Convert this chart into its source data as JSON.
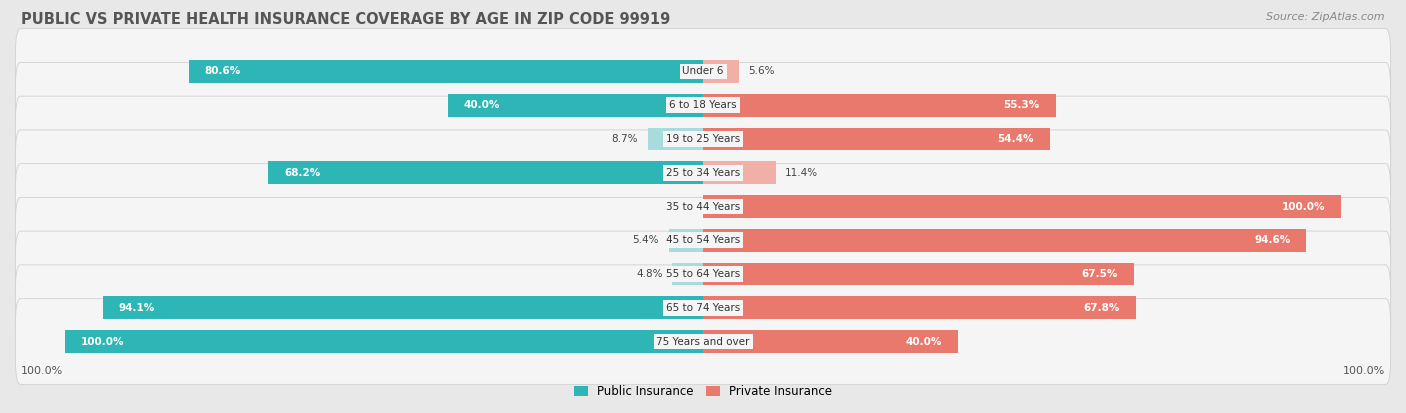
{
  "title": "PUBLIC VS PRIVATE HEALTH INSURANCE COVERAGE BY AGE IN ZIP CODE 99919",
  "source": "Source: ZipAtlas.com",
  "categories": [
    "Under 6",
    "6 to 18 Years",
    "19 to 25 Years",
    "25 to 34 Years",
    "35 to 44 Years",
    "45 to 54 Years",
    "55 to 64 Years",
    "65 to 74 Years",
    "75 Years and over"
  ],
  "public_values": [
    80.6,
    40.0,
    8.7,
    68.2,
    0.0,
    5.4,
    4.8,
    94.1,
    100.0
  ],
  "private_values": [
    5.6,
    55.3,
    54.4,
    11.4,
    100.0,
    94.6,
    67.5,
    67.8,
    40.0
  ],
  "public_color": "#2eb5b5",
  "public_color_light": "#a8dcdc",
  "private_color": "#e8796c",
  "private_color_light": "#f0b0a8",
  "public_label": "Public Insurance",
  "private_label": "Private Insurance",
  "background_color": "#e8e8e8",
  "row_bg_color": "#f5f5f5",
  "row_border_color": "#d0d0d0",
  "title_fontsize": 10.5,
  "source_fontsize": 8,
  "bar_label_fontsize": 7.5,
  "cat_label_fontsize": 7.5,
  "max_value": 100.0,
  "x_axis_left_label": "100.0%",
  "x_axis_right_label": "100.0%",
  "inside_label_threshold": 20
}
